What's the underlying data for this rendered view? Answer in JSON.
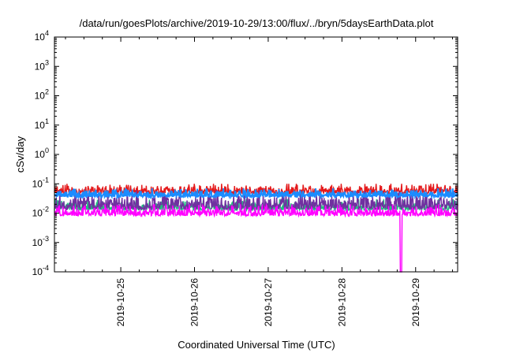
{
  "chart_data": {
    "type": "line",
    "title": "/data/run/goesPlots/archive/2019-10-29/13:00/flux/../bryn/5daysEarthData.plot",
    "xlabel": "Coordinated Universal Time (UTC)",
    "ylabel": "cSv/day",
    "yscale": "log",
    "ylim": [
      0.0001,
      10000
    ],
    "xlim_days": [
      24.1,
      29.57
    ],
    "y_ticks": [
      {
        "base": "10",
        "exp": "4",
        "value": 10000
      },
      {
        "base": "10",
        "exp": "3",
        "value": 1000
      },
      {
        "base": "10",
        "exp": "2",
        "value": 100
      },
      {
        "base": "10",
        "exp": "1",
        "value": 10
      },
      {
        "base": "10",
        "exp": "0",
        "value": 1
      },
      {
        "base": "10",
        "exp": "-1",
        "value": 0.1
      },
      {
        "base": "10",
        "exp": "-2",
        "value": 0.01
      },
      {
        "base": "10",
        "exp": "-3",
        "value": 0.001
      },
      {
        "base": "10",
        "exp": "-4",
        "value": 0.0001
      }
    ],
    "x_ticks": [
      {
        "label": "2019-10-25",
        "day": 25
      },
      {
        "label": "2019-10-26",
        "day": 26
      },
      {
        "label": "2019-10-27",
        "day": 27
      },
      {
        "label": "2019-10-28",
        "day": 28
      },
      {
        "label": "2019-10-29",
        "day": 29
      }
    ],
    "grid": false,
    "legend": "none",
    "series": [
      {
        "color": "#e41a1c",
        "low": 0.03,
        "high": 0.1
      },
      {
        "color": "#20c080",
        "low": 0.008,
        "high": 0.03
      },
      {
        "color": "#7030a0",
        "low": 0.006,
        "high": 0.06
      },
      {
        "color": "#1a8cff",
        "low": 0.025,
        "high": 0.07
      },
      {
        "color": "#ff00ff",
        "low": 0.005,
        "high": 0.02,
        "dip": {
          "day": 28.8,
          "value": 0.0001
        }
      }
    ]
  }
}
